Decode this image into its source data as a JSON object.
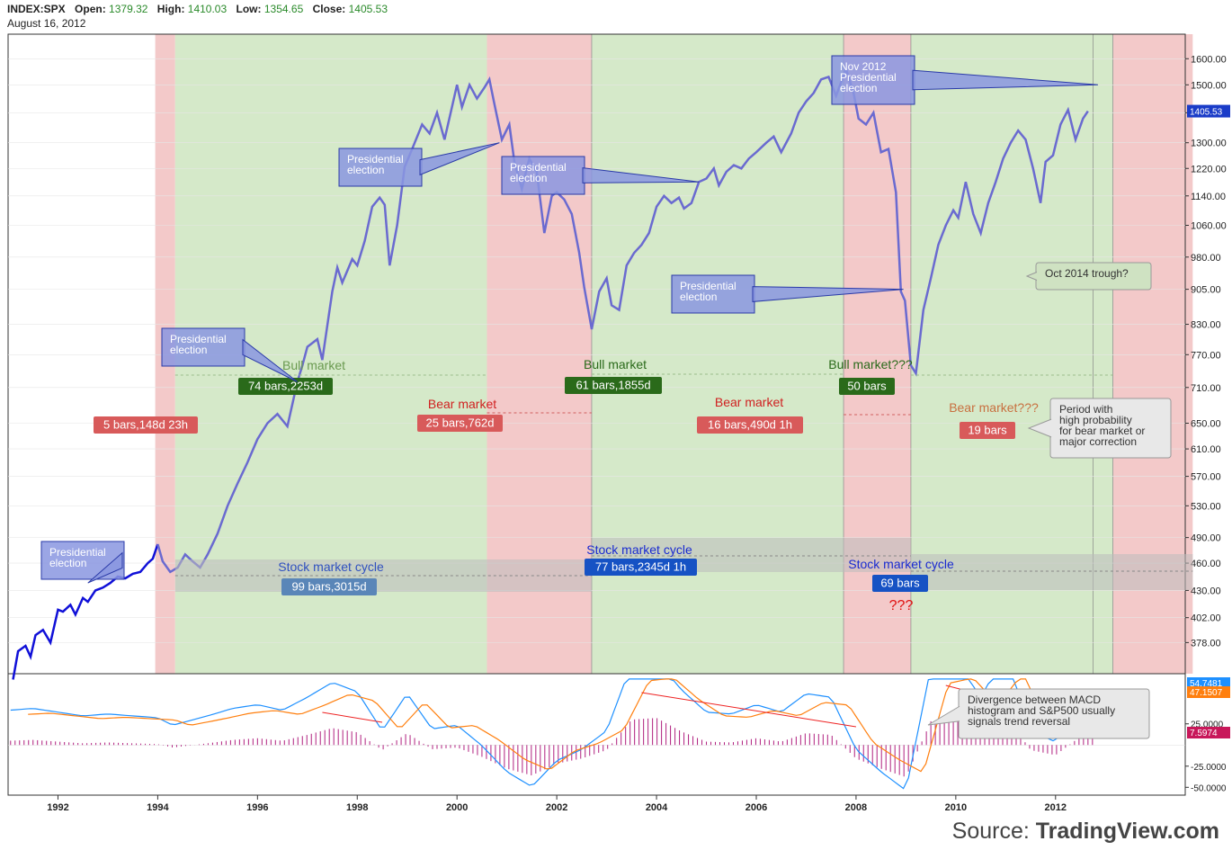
{
  "header": {
    "symbol": "INDEX:SPX",
    "open_label": "Open:",
    "open": "1379.32",
    "high_label": "High:",
    "high": "1410.03",
    "low_label": "Low:",
    "low": "1354.65",
    "close_label": "Close:",
    "close": "1405.53",
    "date": "August 16, 2012"
  },
  "source": {
    "prefix": "Source: ",
    "name": "TradingView.com"
  },
  "colors": {
    "bull": "#d5e9c9",
    "bear": "#f3c9c9",
    "price": "#6a6ad0",
    "macd": "#1e90ff",
    "signal": "#ff7f0e",
    "hist": "#b0207f",
    "last_price": "#1a3cc8"
  },
  "chart_data": [
    {
      "type": "line",
      "title": "",
      "x_ticks": [
        "1992",
        "1994",
        "1996",
        "1998",
        "2000",
        "2002",
        "2004",
        "2006",
        "2008",
        "2010",
        "2012"
      ],
      "y_ticks": [
        "1600.00",
        "1500.00",
        "1400.00",
        "1300.00",
        "1220.00",
        "1140.00",
        "1060.00",
        "980.00",
        "905.00",
        "830.00",
        "770.00",
        "710.00",
        "650.00",
        "610.00",
        "570.00",
        "530.00",
        "490.00",
        "460.00",
        "430.00",
        "402.00",
        "378.00"
      ],
      "y_scale": "log",
      "ylim": [
        350,
        1700
      ],
      "xlim": [
        1991.0,
        2014.6
      ],
      "last_price_label": "1405.53",
      "series": [
        {
          "values": [
            [
              1991.1,
              345
            ],
            [
              1991.2,
              370
            ],
            [
              1991.35,
              375
            ],
            [
              1991.45,
              365
            ],
            [
              1991.55,
              385
            ],
            [
              1991.7,
              390
            ],
            [
              1991.85,
              378
            ],
            [
              1992.0,
              410
            ],
            [
              1992.1,
              408
            ],
            [
              1992.25,
              415
            ],
            [
              1992.35,
              405
            ],
            [
              1992.5,
              422
            ],
            [
              1992.6,
              418
            ],
            [
              1992.75,
              430
            ],
            [
              1992.9,
              433
            ],
            [
              1993.05,
              438
            ],
            [
              1993.2,
              445
            ],
            [
              1993.35,
              443
            ],
            [
              1993.5,
              448
            ],
            [
              1993.65,
              450
            ],
            [
              1993.8,
              460
            ],
            [
              1993.9,
              465
            ],
            [
              1994.0,
              482
            ],
            [
              1994.1,
              462
            ],
            [
              1994.25,
              450
            ],
            [
              1994.4,
              455
            ],
            [
              1994.55,
              470
            ],
            [
              1994.7,
              462
            ],
            [
              1994.85,
              455
            ],
            [
              1995.0,
              470
            ],
            [
              1995.2,
              495
            ],
            [
              1995.4,
              530
            ],
            [
              1995.6,
              560
            ],
            [
              1995.8,
              590
            ],
            [
              1996.0,
              625
            ],
            [
              1996.2,
              650
            ],
            [
              1996.4,
              665
            ],
            [
              1996.6,
              645
            ],
            [
              1996.8,
              720
            ],
            [
              1996.9,
              750
            ],
            [
              1997.0,
              785
            ],
            [
              1997.2,
              800
            ],
            [
              1997.3,
              760
            ],
            [
              1997.5,
              900
            ],
            [
              1997.6,
              955
            ],
            [
              1997.7,
              920
            ],
            [
              1997.9,
              975
            ],
            [
              1998.0,
              960
            ],
            [
              1998.15,
              1020
            ],
            [
              1998.3,
              1110
            ],
            [
              1998.45,
              1135
            ],
            [
              1998.55,
              1115
            ],
            [
              1998.65,
              960
            ],
            [
              1998.8,
              1060
            ],
            [
              1998.95,
              1225
            ],
            [
              1999.1,
              1280
            ],
            [
              1999.3,
              1360
            ],
            [
              1999.45,
              1330
            ],
            [
              1999.6,
              1400
            ],
            [
              1999.75,
              1310
            ],
            [
              1999.9,
              1420
            ],
            [
              2000.0,
              1500
            ],
            [
              2000.1,
              1420
            ],
            [
              2000.25,
              1500
            ],
            [
              2000.4,
              1450
            ],
            [
              2000.55,
              1490
            ],
            [
              2000.65,
              1520
            ],
            [
              2000.75,
              1430
            ],
            [
              2000.9,
              1310
            ],
            [
              2001.05,
              1360
            ],
            [
              2001.15,
              1240
            ],
            [
              2001.3,
              1160
            ],
            [
              2001.45,
              1250
            ],
            [
              2001.6,
              1210
            ],
            [
              2001.75,
              1040
            ],
            [
              2001.9,
              1140
            ],
            [
              2002.0,
              1150
            ],
            [
              2002.15,
              1130
            ],
            [
              2002.3,
              1090
            ],
            [
              2002.45,
              990
            ],
            [
              2002.55,
              910
            ],
            [
              2002.7,
              820
            ],
            [
              2002.85,
              900
            ],
            [
              2003.0,
              930
            ],
            [
              2003.1,
              870
            ],
            [
              2003.25,
              860
            ],
            [
              2003.4,
              960
            ],
            [
              2003.55,
              990
            ],
            [
              2003.7,
              1010
            ],
            [
              2003.85,
              1040
            ],
            [
              2004.0,
              1110
            ],
            [
              2004.15,
              1140
            ],
            [
              2004.3,
              1120
            ],
            [
              2004.45,
              1135
            ],
            [
              2004.55,
              1105
            ],
            [
              2004.7,
              1120
            ],
            [
              2004.85,
              1180
            ],
            [
              2005.0,
              1190
            ],
            [
              2005.15,
              1220
            ],
            [
              2005.25,
              1170
            ],
            [
              2005.4,
              1210
            ],
            [
              2005.55,
              1230
            ],
            [
              2005.7,
              1220
            ],
            [
              2005.85,
              1250
            ],
            [
              2006.0,
              1270
            ],
            [
              2006.2,
              1300
            ],
            [
              2006.35,
              1320
            ],
            [
              2006.5,
              1270
            ],
            [
              2006.7,
              1330
            ],
            [
              2006.85,
              1400
            ],
            [
              2007.0,
              1440
            ],
            [
              2007.15,
              1470
            ],
            [
              2007.3,
              1520
            ],
            [
              2007.45,
              1530
            ],
            [
              2007.6,
              1460
            ],
            [
              2007.8,
              1560
            ],
            [
              2007.95,
              1470
            ],
            [
              2008.05,
              1380
            ],
            [
              2008.2,
              1360
            ],
            [
              2008.35,
              1400
            ],
            [
              2008.5,
              1270
            ],
            [
              2008.65,
              1280
            ],
            [
              2008.8,
              1150
            ],
            [
              2008.9,
              900
            ],
            [
              2008.98,
              880
            ],
            [
              2009.1,
              750
            ],
            [
              2009.2,
              735
            ],
            [
              2009.35,
              860
            ],
            [
              2009.5,
              930
            ],
            [
              2009.65,
              1010
            ],
            [
              2009.8,
              1060
            ],
            [
              2009.95,
              1100
            ],
            [
              2010.05,
              1080
            ],
            [
              2010.2,
              1180
            ],
            [
              2010.35,
              1090
            ],
            [
              2010.5,
              1040
            ],
            [
              2010.65,
              1120
            ],
            [
              2010.8,
              1180
            ],
            [
              2010.95,
              1250
            ],
            [
              2011.1,
              1300
            ],
            [
              2011.25,
              1340
            ],
            [
              2011.4,
              1310
            ],
            [
              2011.55,
              1220
            ],
            [
              2011.7,
              1120
            ],
            [
              2011.8,
              1240
            ],
            [
              2011.95,
              1260
            ],
            [
              2012.1,
              1360
            ],
            [
              2012.25,
              1410
            ],
            [
              2012.4,
              1310
            ],
            [
              2012.55,
              1380
            ],
            [
              2012.65,
              1405.53
            ]
          ]
        }
      ]
    },
    {
      "type": "bar",
      "title": "",
      "y_ticks": [
        "25.0000",
        "-25.0000",
        "-50.0000"
      ],
      "ylim": [
        -55,
        80
      ],
      "value_labels": [
        "54.7481",
        "47.1507",
        "7.5974"
      ],
      "series": [
        {
          "values": [
            [
              1991.0,
              5
            ],
            [
              1991.5,
              6
            ],
            [
              1992.0,
              4
            ],
            [
              1992.5,
              2
            ],
            [
              1993.0,
              3
            ],
            [
              1993.5,
              2
            ],
            [
              1994.0,
              1
            ],
            [
              1994.3,
              -3
            ],
            [
              1995.0,
              2
            ],
            [
              1995.5,
              6
            ],
            [
              1996.0,
              8
            ],
            [
              1996.5,
              5
            ],
            [
              1997.0,
              12
            ],
            [
              1997.5,
              20
            ],
            [
              1998.0,
              15
            ],
            [
              1998.5,
              -6
            ],
            [
              1999.0,
              14
            ],
            [
              1999.5,
              -5
            ],
            [
              2000.0,
              -3
            ],
            [
              2000.5,
              -14
            ],
            [
              2001.0,
              -28
            ],
            [
              2001.5,
              -36
            ],
            [
              2002.0,
              -22
            ],
            [
              2002.5,
              -16
            ],
            [
              2003.0,
              -6
            ],
            [
              2003.5,
              30
            ],
            [
              2004.0,
              32
            ],
            [
              2004.5,
              16
            ],
            [
              2005.0,
              4
            ],
            [
              2005.5,
              3
            ],
            [
              2006.0,
              8
            ],
            [
              2006.5,
              4
            ],
            [
              2007.0,
              14
            ],
            [
              2007.5,
              12
            ],
            [
              2008.0,
              -16
            ],
            [
              2008.5,
              -28
            ],
            [
              2009.0,
              -38
            ],
            [
              2009.5,
              28
            ],
            [
              2010.0,
              32
            ],
            [
              2010.5,
              12
            ],
            [
              2011.0,
              36
            ],
            [
              2011.5,
              -6
            ],
            [
              2012.0,
              -12
            ],
            [
              2012.5,
              10
            ]
          ]
        }
      ]
    }
  ],
  "annotations": {
    "bull_market": "Bull market",
    "bull_market_q": "Bull market???",
    "bear_market": "Bear market",
    "bear_market_q": "Bear market???",
    "stock_cycle": "Stock market cycle",
    "bars_5": "5 bars,148d 23h",
    "bars_74": "74 bars,2253d",
    "bars_25": "25 bars,762d",
    "bars_61": "61 bars,1855d",
    "bars_16": "16 bars,490d 1h",
    "bars_50": "50 bars",
    "bars_19": "19 bars",
    "bars_99": "99 bars,3015d",
    "bars_77": "77 bars,2345d 1h",
    "bars_69": "69 bars",
    "qqq": "???",
    "pres_line1": "Presidential",
    "pres_line2": "election",
    "nov_line1": "Nov 2012",
    "nov_line2": "Presidential",
    "nov_line3": "election",
    "oct2014": "Oct 2014 trough?",
    "period_1": "Period with",
    "period_2": "high probability",
    "period_3": "for bear market or",
    "period_4": "major correction",
    "div_1": "Divergence between MACD",
    "div_2": "histogram and S&P500 usually",
    "div_3": "signals trend reversal"
  }
}
